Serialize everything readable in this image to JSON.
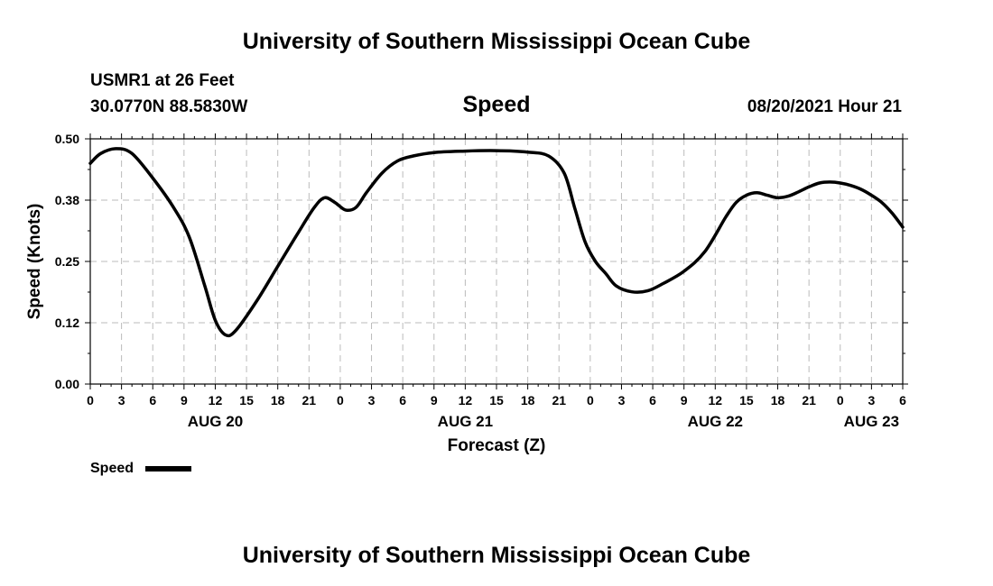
{
  "header": {
    "title": "University of Southern Mississippi Ocean Cube",
    "station": "USMR1 at 26 Feet",
    "coords": "30.0770N  88.5830W",
    "variable": "Speed",
    "datetime": "08/20/2021 Hour 21",
    "footer": "University of Southern Mississippi Ocean Cube"
  },
  "legend": {
    "label": "Speed",
    "color": "#000000"
  },
  "chart_data": {
    "type": "line",
    "xlabel": "Forecast (Z)",
    "ylabel": "Speed (Knots)",
    "xlim": [
      0,
      78
    ],
    "ylim": [
      0,
      0.5
    ],
    "y_ticks": [
      "0.00",
      "0.12",
      "0.25",
      "0.38",
      "0.50"
    ],
    "x_tick_labels": [
      "0",
      "3",
      "6",
      "9",
      "12",
      "15",
      "18",
      "21",
      "0",
      "3",
      "6",
      "9",
      "12",
      "15",
      "18",
      "21",
      "0",
      "3",
      "6",
      "9",
      "12",
      "15",
      "18",
      "21",
      "0",
      "3",
      "6"
    ],
    "date_labels": [
      {
        "text": "AUG 20",
        "x": 12
      },
      {
        "text": "AUG 21",
        "x": 36
      },
      {
        "text": "AUG 22",
        "x": 60
      },
      {
        "text": "AUG 23",
        "x": 75
      }
    ],
    "grid": true,
    "series": [
      {
        "name": "Speed",
        "color": "#000000",
        "x": [
          0,
          1,
          2.5,
          4,
          6,
          8,
          9.5,
          11,
          12,
          13,
          14,
          16,
          18,
          20,
          21.5,
          22.5,
          23.5,
          24.5,
          25.5,
          26.5,
          28,
          29.5,
          31,
          33,
          36,
          39,
          42,
          44,
          45.5,
          46.5,
          47.5,
          48.5,
          49.5,
          50.5,
          52,
          53.5,
          55,
          57,
          59,
          61,
          62,
          63,
          64,
          65,
          66,
          67,
          68,
          69,
          70,
          71,
          72,
          73,
          74,
          75,
          76,
          77,
          78
        ],
        "y": [
          0.45,
          0.47,
          0.48,
          0.47,
          0.42,
          0.36,
          0.3,
          0.2,
          0.13,
          0.1,
          0.11,
          0.17,
          0.24,
          0.31,
          0.36,
          0.38,
          0.37,
          0.355,
          0.36,
          0.39,
          0.43,
          0.455,
          0.465,
          0.472,
          0.475,
          0.476,
          0.473,
          0.465,
          0.43,
          0.36,
          0.29,
          0.25,
          0.225,
          0.2,
          0.188,
          0.19,
          0.205,
          0.23,
          0.27,
          0.34,
          0.37,
          0.385,
          0.39,
          0.385,
          0.38,
          0.383,
          0.392,
          0.402,
          0.41,
          0.412,
          0.41,
          0.405,
          0.397,
          0.385,
          0.37,
          0.348,
          0.32
        ]
      }
    ]
  }
}
